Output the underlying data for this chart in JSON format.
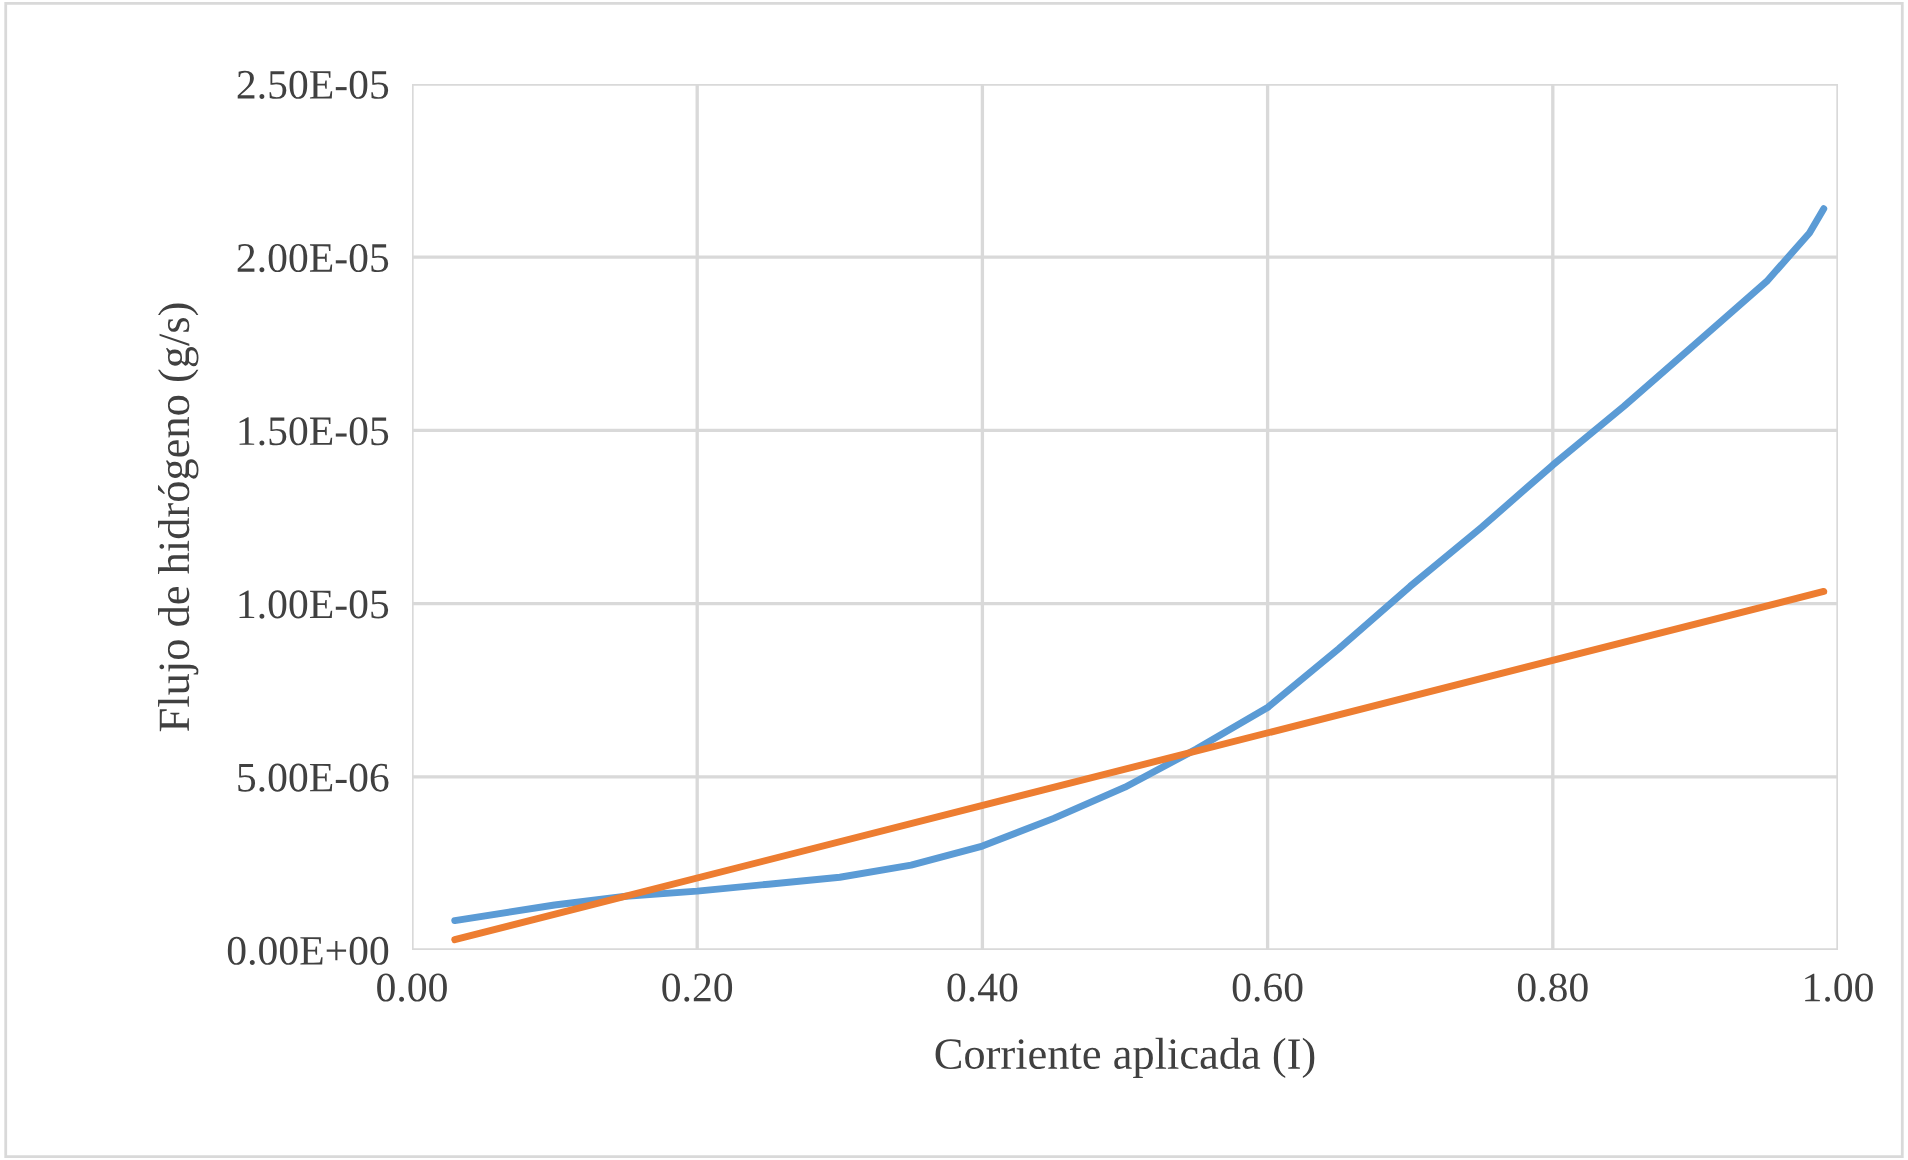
{
  "chart_data": {
    "type": "line",
    "xlabel": "Corriente aplicada (I)",
    "ylabel": "Flujo de hidrógeno (g/s)",
    "xlim": [
      0,
      1
    ],
    "xticks": [
      {
        "value": 0,
        "label": "0.00"
      },
      {
        "value": 0.2,
        "label": "0.20"
      },
      {
        "value": 0.4,
        "label": "0.40"
      },
      {
        "value": 0.6,
        "label": "0.60"
      },
      {
        "value": 0.8,
        "label": "0.80"
      },
      {
        "value": 1,
        "label": "1.00"
      }
    ],
    "ylim": [
      0,
      2.5e-05
    ],
    "yticks": [
      {
        "value": 0,
        "label": "0.00E+00"
      },
      {
        "value": 5e-06,
        "label": "5.00E-06"
      },
      {
        "value": 1e-05,
        "label": "1.00E-05"
      },
      {
        "value": 1.5e-05,
        "label": "1.50E-05"
      },
      {
        "value": 2e-05,
        "label": "2.00E-05"
      },
      {
        "value": 2.5e-05,
        "label": "2.50E-05"
      }
    ],
    "grid": true,
    "legend": false,
    "marker": "none",
    "line_style": "solid",
    "series": [
      {
        "color": "#5b9bd5",
        "x": [
          0.03,
          0.1,
          0.15,
          0.2,
          0.25,
          0.3,
          0.35,
          0.4,
          0.45,
          0.5,
          0.55,
          0.6,
          0.65,
          0.7,
          0.75,
          0.8,
          0.85,
          0.9,
          0.95,
          0.98,
          0.99
        ],
        "values": [
          8.5e-07,
          1.3e-06,
          1.55e-06,
          1.7e-06,
          1.9e-06,
          2.1e-06,
          2.45e-06,
          3e-06,
          3.8e-06,
          4.7e-06,
          5.8e-06,
          7e-06,
          8.7e-06,
          1.05e-05,
          1.22e-05,
          1.4e-05,
          1.57e-05,
          1.75e-05,
          1.93e-05,
          2.07e-05,
          2.14e-05
        ]
      },
      {
        "color": "#ed7d31",
        "x": [
          0.03,
          0.99
        ],
        "values": [
          3e-07,
          1.035e-05
        ]
      }
    ]
  }
}
